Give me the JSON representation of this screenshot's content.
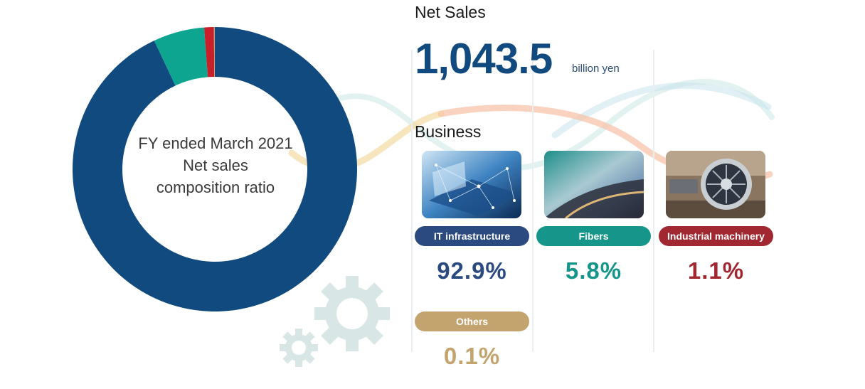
{
  "center_label": {
    "line1": "FY ended March 2021",
    "line2": "Net sales",
    "line3": "composition ratio"
  },
  "net_sales": {
    "title": "Net Sales",
    "value": "1,043.5",
    "unit": "billion yen"
  },
  "business": {
    "title": "Business",
    "segments": [
      {
        "label": "IT infrastructure",
        "percent": "92.9%",
        "color": "#2b4a80",
        "value_color": "#2b4a80",
        "image_icon": "network-laptop-image"
      },
      {
        "label": "Fibers",
        "percent": "5.8%",
        "color": "#16968a",
        "value_color": "#16968a",
        "image_icon": "fiber-sheet-image"
      },
      {
        "label": "Industrial machinery",
        "percent": "1.1%",
        "color": "#a12730",
        "value_color": "#a12730",
        "image_icon": "jet-engine-image"
      },
      {
        "label": "Others",
        "percent": "0.1%",
        "color": "#c3a46f",
        "value_color": "#c3a46f",
        "image_icon": ""
      }
    ]
  },
  "chart_data": {
    "type": "pie",
    "title": "",
    "categories": [
      "IT infrastructure",
      "Fibers",
      "Industrial machinery",
      "Others"
    ],
    "values": [
      92.9,
      5.8,
      1.1,
      0.1
    ],
    "colors": [
      "#114a7f",
      "#0ea590",
      "#c8202a",
      "#c3a46f"
    ],
    "legend": "none",
    "donut": true
  }
}
